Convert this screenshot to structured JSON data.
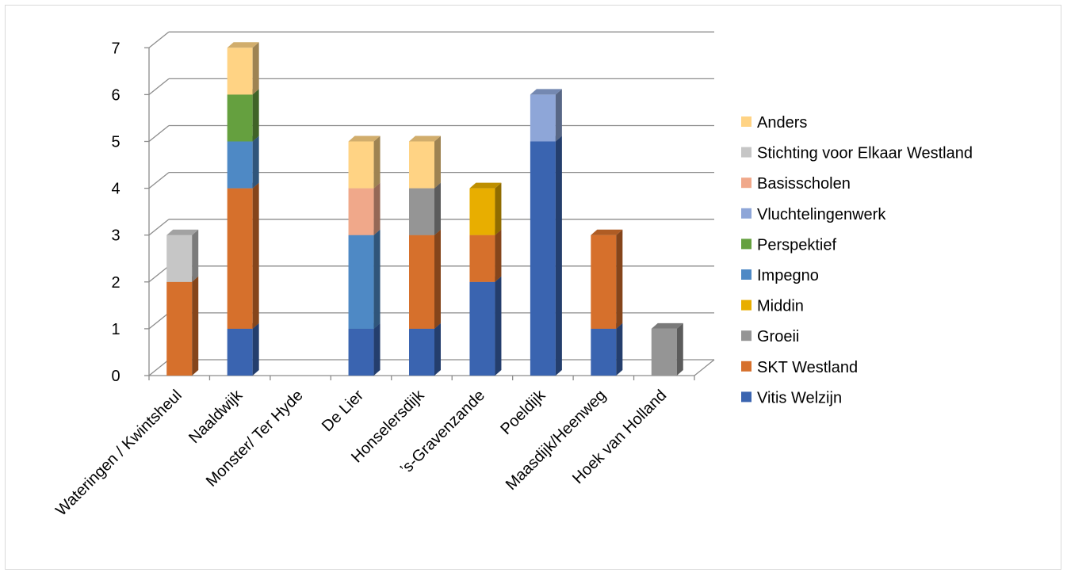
{
  "chart_data": {
    "type": "bar",
    "stacked": true,
    "three_d": true,
    "title": "",
    "xlabel": "",
    "ylabel": "",
    "ylim": [
      0,
      7
    ],
    "yticks": [
      "0",
      "1",
      "2",
      "3",
      "4",
      "5",
      "6",
      "7"
    ],
    "grid": true,
    "legend_position": "right",
    "categories": [
      "Wateringen / Kwintsheul",
      "Naaldwijk",
      "Monster/ Ter Hyde",
      "De Lier",
      "Honselersdijk",
      "’s-Gravenzande",
      "Poeldijk",
      "Maasdijk/Heenweg",
      "Hoek van Holland"
    ],
    "series": [
      {
        "name": "Vitis Welzijn",
        "color": "#3A64B0",
        "values": [
          0,
          1,
          0,
          1,
          1,
          2,
          5,
          1,
          0
        ]
      },
      {
        "name": "SKT Westland",
        "color": "#D6702C",
        "values": [
          2,
          3,
          0,
          0,
          2,
          1,
          0,
          2,
          0
        ]
      },
      {
        "name": "Groeii",
        "color": "#959595",
        "values": [
          0,
          0,
          0,
          0,
          1,
          0,
          0,
          0,
          1
        ]
      },
      {
        "name": "Middin",
        "color": "#E8AE00",
        "values": [
          0,
          0,
          0,
          0,
          0,
          1,
          0,
          0,
          0
        ]
      },
      {
        "name": "Impegno",
        "color": "#4E89C5",
        "values": [
          0,
          1,
          0,
          2,
          0,
          0,
          0,
          0,
          0
        ]
      },
      {
        "name": "Perspektief",
        "color": "#65A03F",
        "values": [
          0,
          1,
          0,
          0,
          0,
          0,
          0,
          0,
          0
        ]
      },
      {
        "name": "Vluchtelingenwerk",
        "color": "#8EA6D8",
        "values": [
          0,
          0,
          0,
          0,
          0,
          0,
          1,
          0,
          0
        ]
      },
      {
        "name": "Basisscholen",
        "color": "#F0A88A",
        "values": [
          0,
          0,
          0,
          1,
          0,
          0,
          0,
          0,
          0
        ]
      },
      {
        "name": "Stichting voor Elkaar Westland",
        "color": "#C6C6C6",
        "values": [
          1,
          0,
          0,
          0,
          0,
          0,
          0,
          0,
          0
        ]
      },
      {
        "name": "Anders",
        "color": "#FFD384",
        "values": [
          0,
          1,
          0,
          1,
          1,
          0,
          0,
          0,
          0
        ]
      }
    ]
  }
}
